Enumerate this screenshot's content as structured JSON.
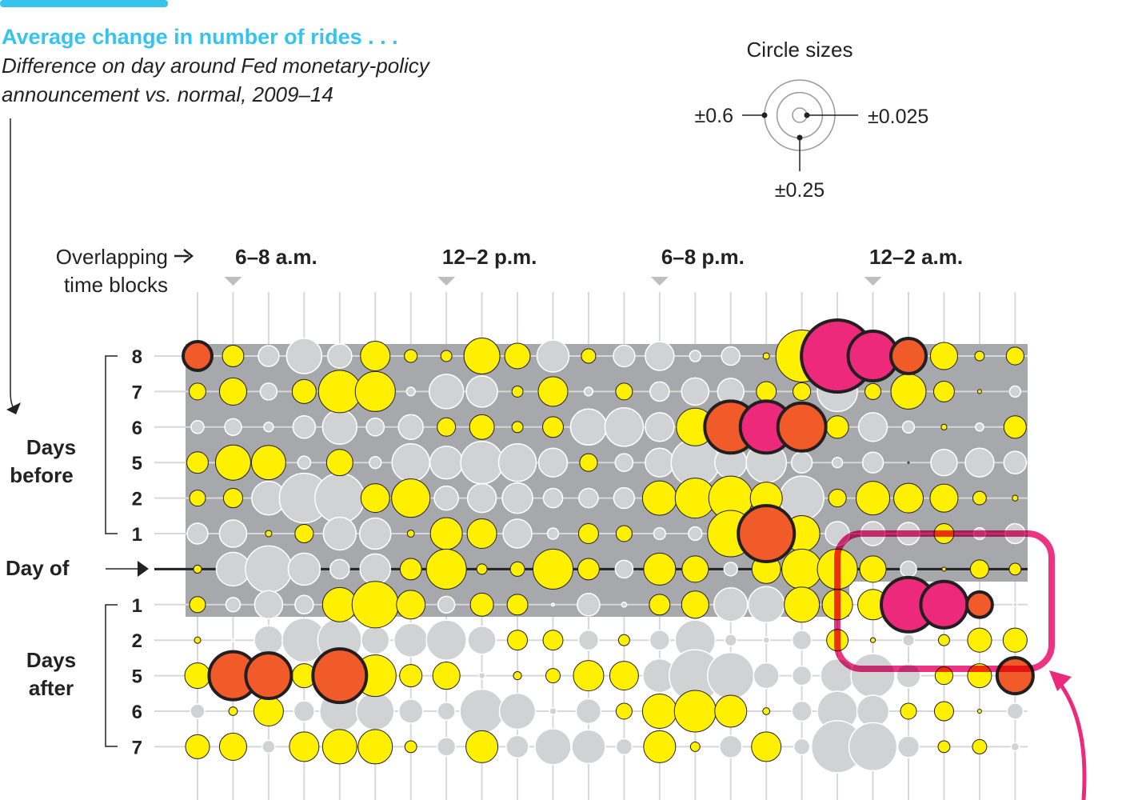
{
  "header": {
    "title": "Average change in number of rides . . .",
    "subtitle_line1": "Difference on day around Fed monetary-policy",
    "subtitle_line2": "announcement vs. normal, 2009–14"
  },
  "legend": {
    "title": "Circle sizes",
    "large": "±0.6",
    "medium": "±0.25",
    "small": "±0.025",
    "values": [
      0.6,
      0.25,
      0.025
    ]
  },
  "labels": {
    "overlapping_line1": "Overlapping",
    "overlapping_line2": "time blocks",
    "days_before_line1": "Days",
    "days_before_line2": "before",
    "day_of": "Day of",
    "days_after_line1": "Days",
    "days_after_line2": "after"
  },
  "colors": {
    "accent": "#35C4EE",
    "yellow": "#FFF000",
    "gray": "#D1D2D4",
    "orange": "#F15A29",
    "pink": "#EC297B",
    "panel": "#A7A8AB"
  },
  "chart_data": {
    "type": "bubble-grid",
    "title": "Average change in number of rides . . .",
    "time_block_labels": [
      {
        "label": "6–8 a.m.",
        "column": 1
      },
      {
        "label": "12–2 p.m.",
        "column": 7
      },
      {
        "label": "6–8 p.m.",
        "column": 13
      },
      {
        "label": "12–2 a.m.",
        "column": 19
      }
    ],
    "columns": 24,
    "row_labels": [
      "8",
      "7",
      "6",
      "5",
      "2",
      "1",
      "",
      "1",
      "2",
      "5",
      "6",
      "7"
    ],
    "category_key": {
      "Y": "yellow",
      "G": "gray",
      "O": "orange",
      "P": "pink"
    },
    "rows": [
      [
        [
          "O",
          0.1
        ],
        [
          "Y",
          0.056
        ],
        [
          "G",
          0.052
        ],
        [
          "G",
          0.15
        ],
        [
          "G",
          0.07
        ],
        [
          "Y",
          0.106
        ],
        [
          "Y",
          0.02
        ],
        [
          "Y",
          0.015
        ],
        [
          "Y",
          0.157
        ],
        [
          "Y",
          0.079
        ],
        [
          "G",
          0.124
        ],
        [
          "Y",
          0.025
        ],
        [
          "G",
          0.056
        ],
        [
          "G",
          0.1
        ],
        [
          "G",
          0.015
        ],
        [
          "G",
          0.041
        ],
        [
          "Y",
          0.005
        ],
        [
          "Y",
          0.327
        ],
        [
          "P",
          0.628
        ],
        [
          "P",
          0.298
        ],
        [
          "O",
          0.15
        ],
        [
          "Y",
          0.09
        ],
        [
          "Y",
          0.011
        ],
        [
          "Y",
          0.038
        ]
      ],
      [
        [
          "Y",
          0.034
        ],
        [
          "Y",
          0.09
        ],
        [
          "G",
          0.034
        ],
        [
          "Y",
          0.07
        ],
        [
          "Y",
          0.218
        ],
        [
          "Y",
          0.194
        ],
        [
          "G",
          0.009
        ],
        [
          "G",
          0.143
        ],
        [
          "G",
          0.118
        ],
        [
          "Y",
          0.015
        ],
        [
          "Y",
          0.106
        ],
        [
          "G",
          0.009
        ],
        [
          "Y",
          0.034
        ],
        [
          "G",
          0.045
        ],
        [
          "G",
          0.09
        ],
        [
          "G",
          0.084
        ],
        [
          "Y",
          0.048
        ],
        [
          "Y",
          0.038
        ],
        [
          "G",
          0.194
        ],
        [
          "Y",
          0.031
        ],
        [
          "Y",
          0.15
        ],
        [
          "Y",
          0.052
        ],
        [
          "Y",
          0.002
        ],
        [
          "G",
          0.015
        ]
      ],
      [
        [
          "G",
          0.02
        ],
        [
          "G",
          0.034
        ],
        [
          "G",
          0.011
        ],
        [
          "G",
          0.061
        ],
        [
          "G",
          0.143
        ],
        [
          "G",
          0.038
        ],
        [
          "G",
          0.074
        ],
        [
          "Y",
          0.041
        ],
        [
          "Y",
          0.074
        ],
        [
          "Y",
          0.015
        ],
        [
          "Y",
          0.052
        ],
        [
          "G",
          0.157
        ],
        [
          "G",
          0.179
        ],
        [
          "G",
          0.1
        ],
        [
          "Y",
          0.171
        ],
        [
          "O",
          0.327
        ],
        [
          "P",
          0.327
        ],
        [
          "O",
          0.279
        ],
        [
          "Y",
          0.061
        ],
        [
          "G",
          0.1
        ],
        [
          "G",
          0.017
        ],
        [
          "Y",
          0.004
        ],
        [
          "G",
          0.008
        ],
        [
          "Y",
          0.061
        ]
      ],
      [
        [
          "Y",
          0.056
        ],
        [
          "Y",
          0.15
        ],
        [
          "Y",
          0.143
        ],
        [
          "G",
          0.02
        ],
        [
          "Y",
          0.084
        ],
        [
          "G",
          0.017
        ],
        [
          "G",
          0.171
        ],
        [
          "G",
          0.13
        ],
        [
          "G",
          0.218
        ],
        [
          "G",
          0.171
        ],
        [
          "G",
          0.1
        ],
        [
          "Y",
          0.038
        ],
        [
          "G",
          0.038
        ],
        [
          "G",
          0.1
        ],
        [
          "G",
          0.279
        ],
        [
          "G",
          0.124
        ],
        [
          "G",
          0.194
        ],
        [
          "G",
          0.052
        ],
        [
          "G",
          0.013
        ],
        [
          "G",
          0.052
        ],
        [
          "Y",
          0.0003
        ],
        [
          "G",
          0.084
        ],
        [
          "G",
          0.1
        ],
        [
          "G",
          0.061
        ]
      ],
      [
        [
          "Y",
          0.031
        ],
        [
          "Y",
          0.045
        ],
        [
          "G",
          0.137
        ],
        [
          "G",
          0.298
        ],
        [
          "G",
          0.298
        ],
        [
          "Y",
          0.1
        ],
        [
          "Y",
          0.179
        ],
        [
          "G",
          0.07
        ],
        [
          "G",
          0.1
        ],
        [
          "G",
          0.112
        ],
        [
          "G",
          0.045
        ],
        [
          "G",
          0.045
        ],
        [
          "G",
          0.052
        ],
        [
          "Y",
          0.143
        ],
        [
          "Y",
          0.194
        ],
        [
          "Y",
          0.234
        ],
        [
          "Y",
          0.124
        ],
        [
          "G",
          0.234
        ],
        [
          "Y",
          0.038
        ],
        [
          "Y",
          0.137
        ],
        [
          "Y",
          0.106
        ],
        [
          "Y",
          0.095
        ],
        [
          "Y",
          0.022
        ],
        [
          "Y",
          0.004
        ]
      ],
      [
        [
          "G",
          0.052
        ],
        [
          "G",
          0.09
        ],
        [
          "Y",
          0.005
        ],
        [
          "Y",
          0.041
        ],
        [
          "G",
          0.13
        ],
        [
          "G",
          0.118
        ],
        [
          "Y",
          0.006
        ],
        [
          "Y",
          0.124
        ],
        [
          "Y",
          0.106
        ],
        [
          "G",
          0.1
        ],
        [
          "G",
          0.015
        ],
        [
          "Y",
          0.048
        ],
        [
          "Y",
          0.031
        ],
        [
          "G",
          0.017
        ],
        [
          "G",
          0.022
        ],
        [
          "Y",
          0.261
        ],
        [
          "O",
          0.38
        ],
        [
          "Y",
          0.157
        ],
        [
          "G",
          0.07
        ],
        [
          "G",
          0.07
        ],
        [
          "G",
          0.061
        ],
        [
          "Y",
          0.048
        ],
        [
          "G",
          0.017
        ],
        [
          "G",
          0.048
        ]
      ],
      [
        [
          "Y",
          0.008
        ],
        [
          "G",
          0.137
        ],
        [
          "G",
          0.261
        ],
        [
          "G",
          0.124
        ],
        [
          "G",
          0.045
        ],
        [
          "G",
          0.112
        ],
        [
          "Y",
          0.056
        ],
        [
          "Y",
          0.194
        ],
        [
          "Y",
          0.013
        ],
        [
          "Y",
          0.025
        ],
        [
          "Y",
          0.194
        ],
        [
          "Y",
          0.056
        ],
        [
          "G",
          0.038
        ],
        [
          "Y",
          0.124
        ],
        [
          "Y",
          0.084
        ],
        [
          "G",
          0.022
        ],
        [
          "Y",
          0.1
        ],
        [
          "Y",
          0.194
        ],
        [
          "Y",
          0.194
        ],
        [
          "Y",
          0.084
        ],
        [
          "G",
          0.031
        ],
        [
          "Y",
          0.002
        ],
        [
          "Y",
          0.041
        ],
        [
          "Y",
          0.017
        ]
      ],
      [
        [
          "Y",
          0.031
        ],
        [
          "G",
          0.025
        ],
        [
          "G",
          0.095
        ],
        [
          "G",
          0.041
        ],
        [
          "Y",
          0.143
        ],
        [
          "Y",
          0.261
        ],
        [
          "Y",
          0.1
        ],
        [
          "G",
          0.034
        ],
        [
          "Y",
          0.065
        ],
        [
          "Y",
          0.052
        ],
        [
          "G",
          0.001
        ],
        [
          "G",
          0.061
        ],
        [
          "G",
          0.003
        ],
        [
          "Y",
          0.052
        ],
        [
          "Y",
          0.09
        ],
        [
          "G",
          0.137
        ],
        [
          "G",
          0.157
        ],
        [
          "Y",
          0.15
        ],
        [
          "Y",
          0.112
        ],
        [
          "Y",
          0.112
        ],
        [
          "P",
          0.358
        ],
        [
          "P",
          0.261
        ],
        [
          "O",
          0.079
        ],
        [
          "G",
          0.002
        ]
      ],
      [
        [
          "Y",
          0.005
        ],
        [
          "G",
          0.001
        ],
        [
          "G",
          0.1
        ],
        [
          "G",
          0.234
        ],
        [
          "G",
          0.234
        ],
        [
          "G",
          0.095
        ],
        [
          "G",
          0.137
        ],
        [
          "G",
          0.194
        ],
        [
          "G",
          0.095
        ],
        [
          "Y",
          0.048
        ],
        [
          "Y",
          0.048
        ],
        [
          "G",
          0.048
        ],
        [
          "Y",
          0.015
        ],
        [
          "G",
          0.048
        ],
        [
          "G",
          0.194
        ],
        [
          "G",
          0.017
        ],
        [
          "G",
          0.005
        ],
        [
          "G",
          0.045
        ],
        [
          "Y",
          0.056
        ],
        [
          "Y",
          0.003
        ],
        [
          "G",
          0.017
        ],
        [
          "Y",
          0.015
        ],
        [
          "Y",
          0.07
        ],
        [
          "Y",
          0.07
        ]
      ],
      [
        [
          "Y",
          0.079
        ],
        [
          "O",
          0.279
        ],
        [
          "O",
          0.252
        ],
        [
          "Y",
          0.07
        ],
        [
          "O",
          0.348
        ],
        [
          "Y",
          0.21
        ],
        [
          "Y",
          0.061
        ],
        [
          "Y",
          0.09
        ],
        [
          "G",
          0.005
        ],
        [
          "Y",
          0.008
        ],
        [
          "Y",
          0.025
        ],
        [
          "Y",
          0.112
        ],
        [
          "Y",
          0.1
        ],
        [
          "G",
          0.137
        ],
        [
          "G",
          0.327
        ],
        [
          "G",
          0.261
        ],
        [
          "G",
          0.079
        ],
        [
          "G",
          0.045
        ],
        [
          "G",
          0.137
        ],
        [
          "G",
          0.234
        ],
        [
          "G",
          0.07
        ],
        [
          "Y",
          0.038
        ],
        [
          "Y",
          0.07
        ],
        [
          "O",
          0.157
        ]
      ],
      [
        [
          "G",
          0.025
        ],
        [
          "Y",
          0.009
        ],
        [
          "Y",
          0.106
        ],
        [
          "G",
          0.052
        ],
        [
          "G",
          0.194
        ],
        [
          "G",
          0.171
        ],
        [
          "G",
          0.07
        ],
        [
          "G",
          0.038
        ],
        [
          "G",
          0.234
        ],
        [
          "G",
          0.157
        ],
        [
          "G",
          0.006
        ],
        [
          "G",
          0.074
        ],
        [
          "Y",
          0.031
        ],
        [
          "Y",
          0.143
        ],
        [
          "Y",
          0.21
        ],
        [
          "Y",
          0.124
        ],
        [
          "Y",
          0.006
        ],
        [
          "G",
          0.048
        ],
        [
          "G",
          0.194
        ],
        [
          "G",
          0.124
        ],
        [
          "Y",
          0.031
        ],
        [
          "Y",
          0.045
        ],
        [
          "Y",
          0.002
        ],
        [
          "G",
          0.031
        ]
      ],
      [
        [
          "Y",
          0.07
        ],
        [
          "Y",
          0.09
        ],
        [
          "G",
          0.02
        ],
        [
          "Y",
          0.106
        ],
        [
          "Y",
          0.143
        ],
        [
          "Y",
          0.143
        ],
        [
          "Y",
          0.017
        ],
        [
          "G",
          0.041
        ],
        [
          "Y",
          0.124
        ],
        [
          "G",
          0.061
        ],
        [
          "G",
          0.157
        ],
        [
          "G",
          0.137
        ],
        [
          "G",
          0.031
        ],
        [
          "Y",
          0.124
        ],
        [
          "Y",
          0.011
        ],
        [
          "G",
          0.061
        ],
        [
          "Y",
          0.106
        ],
        [
          "G",
          0.031
        ],
        [
          "G",
          0.327
        ],
        [
          "G",
          0.279
        ],
        [
          "G",
          0.056
        ],
        [
          "Y",
          0.017
        ],
        [
          "Y",
          0.025
        ],
        [
          "G",
          0.008
        ]
      ]
    ]
  }
}
